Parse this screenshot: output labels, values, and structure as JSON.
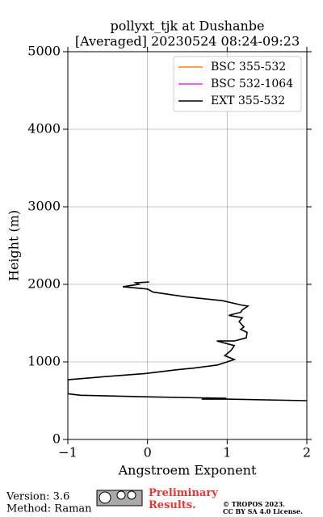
{
  "chart_data": {
    "type": "line",
    "title": "pollyxt_tjk at Dushanbe",
    "subtitle": "[Averaged] 20230524 08:24-09:23",
    "xlabel": "Angstroem Exponent",
    "ylabel": "Height (m)",
    "xlim": [
      -1,
      2
    ],
    "ylim": [
      0,
      5000
    ],
    "xticks": [
      {
        "value": -1,
        "label": "−1"
      },
      0,
      1,
      2
    ],
    "yticks": [
      0,
      1000,
      2000,
      3000,
      4000,
      5000
    ],
    "grid": true,
    "legend": "upper right",
    "series": [
      {
        "name": "BSC 355-532",
        "color": "#ff7f0e",
        "x": [],
        "y": []
      },
      {
        "name": "BSC 532-1064",
        "color": "#e42ee4",
        "x": [],
        "y": []
      },
      {
        "name": "EXT 355-532",
        "color": "#000000",
        "x": [
          0.02,
          -0.15,
          -0.11,
          -0.31,
          0.0,
          0.07,
          0.48,
          0.94,
          1.19,
          1.26,
          1.19,
          1.17,
          1.02,
          1.19,
          1.15,
          1.21,
          1.17,
          1.25,
          1.24,
          1.09,
          0.87,
          1.09,
          1.05,
          0.97,
          1.09,
          0.88,
          0.58,
          0.38,
          -0.03,
          -0.53,
          -1.0,
          -1.0,
          -0.84,
          -0.03,
          0.99,
          0.68,
          1.0,
          2.0
        ],
        "y": [
          2030,
          2020,
          2000,
          1970,
          1940,
          1900,
          1840,
          1790,
          1730,
          1720,
          1670,
          1640,
          1600,
          1570,
          1520,
          1450,
          1420,
          1380,
          1310,
          1270,
          1270,
          1210,
          1150,
          1080,
          1030,
          960,
          920,
          900,
          850,
          810,
          770,
          590,
          570,
          550,
          530,
          520,
          520,
          500
        ]
      }
    ]
  },
  "footer": {
    "version": "Version: 3.6",
    "method": "Method: Raman",
    "status": "Preliminary Results.",
    "copyright": "© TROPOS 2023.",
    "license": "CC BY SA 4.0 License."
  }
}
